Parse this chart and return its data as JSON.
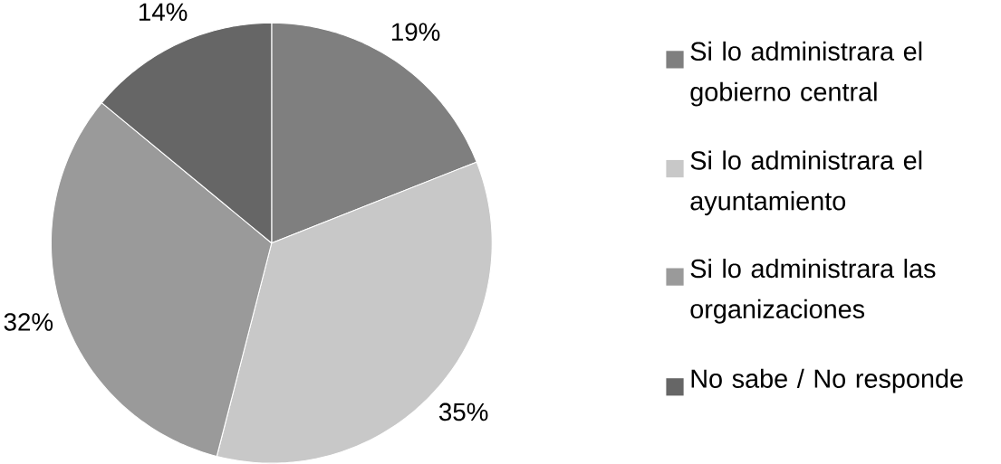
{
  "chart_data": {
    "type": "pie",
    "categories": [
      "Si lo administrara el gobierno central",
      "Si lo administrara el ayuntamiento",
      "Si lo administrara las organizaciones",
      "No sabe / No responde"
    ],
    "values": [
      19,
      35,
      32,
      14
    ],
    "value_labels": [
      "19%",
      "35%",
      "32%",
      "14%"
    ],
    "colors": [
      "#7f7f7f",
      "#c8c8c8",
      "#9a9a9a",
      "#666666"
    ],
    "legend": "right"
  }
}
